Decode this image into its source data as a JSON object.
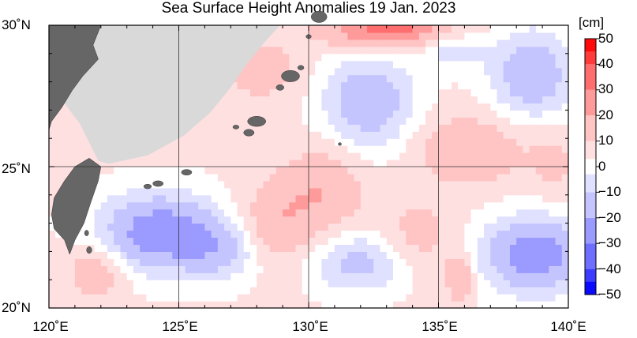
{
  "title": "Sea Surface Height Anomalies  19 Jan. 2023",
  "lat_labels": [
    "30˚N",
    "25˚N",
    "20˚N"
  ],
  "lon_labels": [
    "120˚E",
    "125˚E",
    "130˚E",
    "135˚E",
    "140˚E"
  ],
  "colorbar": {
    "unit": "[cm]",
    "labels": [
      "50",
      "40",
      "30",
      "20",
      "10",
      "0",
      "−10",
      "−20",
      "−30",
      "−40",
      "−50"
    ],
    "colors_pos": [
      "#ffe0e0",
      "#ffc4c4",
      "#ff9a9a",
      "#ff6e6e",
      "#ff3c3c",
      "#ff0a0a"
    ],
    "colors_neg": [
      "#e0e0ff",
      "#c4c4ff",
      "#9a9aff",
      "#6e6eff",
      "#3c3cff",
      "#0a0aff"
    ],
    "zero_color": "#ffffff"
  },
  "colors": {
    "land": "#666666",
    "no_data": "#d9d9d9",
    "grid": "#333333"
  },
  "chart_data": {
    "type": "heatmap",
    "title": "Sea Surface Height Anomalies  19 Jan. 2023",
    "x_range": [
      120,
      140
    ],
    "y_range": [
      20,
      30
    ],
    "value_range": [
      -50,
      50
    ],
    "unit": "cm",
    "xticks": [
      120,
      125,
      130,
      135,
      140
    ],
    "yticks": [
      20,
      25,
      30
    ],
    "anomaly_features": [
      {
        "lon": 124.3,
        "lat": 22.7,
        "amp": -32,
        "rx": 2.3,
        "ry": 1.3
      },
      {
        "lon": 126.6,
        "lat": 22.0,
        "amp": -14,
        "rx": 1.6,
        "ry": 1.0
      },
      {
        "lon": 132.3,
        "lat": 27.3,
        "amp": -22,
        "rx": 1.7,
        "ry": 1.6
      },
      {
        "lon": 131.9,
        "lat": 21.6,
        "amp": -17,
        "rx": 1.8,
        "ry": 1.0
      },
      {
        "lon": 138.7,
        "lat": 21.9,
        "amp": -32,
        "rx": 1.9,
        "ry": 1.3
      },
      {
        "lon": 138.6,
        "lat": 28.3,
        "amp": -22,
        "rx": 1.6,
        "ry": 1.5
      },
      {
        "lon": 135.4,
        "lat": 29.2,
        "amp": -12,
        "rx": 1.3,
        "ry": 0.7
      },
      {
        "lon": 133.1,
        "lat": 29.9,
        "amp": 32,
        "rx": 2.4,
        "ry": 0.7
      },
      {
        "lon": 130.5,
        "lat": 24.2,
        "amp": 15,
        "rx": 1.6,
        "ry": 1.5
      },
      {
        "lon": 128.7,
        "lat": 22.9,
        "amp": 14,
        "rx": 1.4,
        "ry": 1.4
      },
      {
        "lon": 136.2,
        "lat": 25.6,
        "amp": 16,
        "rx": 1.9,
        "ry": 1.2
      },
      {
        "lon": 134.2,
        "lat": 22.6,
        "amp": 10,
        "rx": 1.3,
        "ry": 1.2
      },
      {
        "lon": 135.8,
        "lat": 21.1,
        "amp": 18,
        "rx": 0.5,
        "ry": 0.8
      },
      {
        "lon": 121.8,
        "lat": 21.3,
        "amp": 14,
        "rx": 1.1,
        "ry": 1.0
      },
      {
        "lon": 128.2,
        "lat": 28.4,
        "amp": 10,
        "rx": 1.6,
        "ry": 1.2
      },
      {
        "lon": 139.4,
        "lat": 25.2,
        "amp": 8,
        "rx": 1.0,
        "ry": 1.2
      }
    ]
  }
}
